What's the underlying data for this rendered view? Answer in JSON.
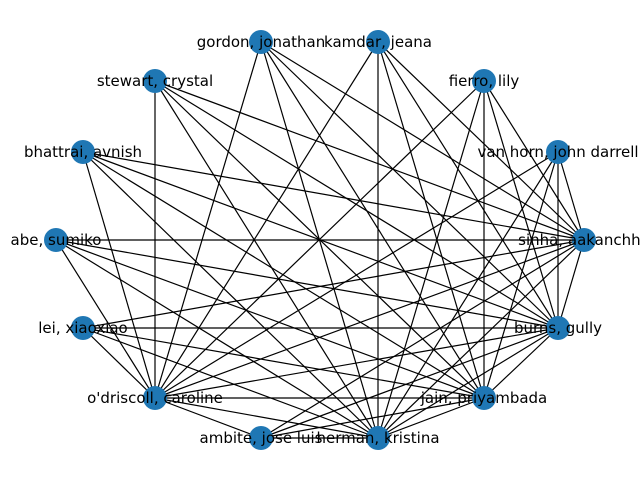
{
  "graph": {
    "node_color": "#1f77b4",
    "edge_color": "#000000",
    "nodes": [
      {
        "id": "kamdar",
        "label": "kamdar, jeana"
      },
      {
        "id": "gordon",
        "label": "gordon, jonathan"
      },
      {
        "id": "stewart",
        "label": "stewart, crystal"
      },
      {
        "id": "bhattrai",
        "label": "bhattrai, avnish"
      },
      {
        "id": "abe",
        "label": "abe, sumiko"
      },
      {
        "id": "lei",
        "label": "lei, xiaoxiao"
      },
      {
        "id": "odriscoll",
        "label": "o'driscoll, caroline"
      },
      {
        "id": "ambite",
        "label": "ambite, jose luis"
      },
      {
        "id": "herman",
        "label": "herman, kristina"
      },
      {
        "id": "jain",
        "label": "jain, priyambada"
      },
      {
        "id": "burns",
        "label": "burns, gully"
      },
      {
        "id": "sinha",
        "label": "sinha, aakanchha"
      },
      {
        "id": "vanhorn",
        "label": "van horn, john darrell"
      },
      {
        "id": "fierro",
        "label": "fierro, lily"
      }
    ],
    "edges": [
      [
        "kamdar",
        "herman"
      ],
      [
        "kamdar",
        "odriscoll"
      ],
      [
        "kamdar",
        "sinha"
      ],
      [
        "kamdar",
        "burns"
      ],
      [
        "kamdar",
        "jain"
      ],
      [
        "gordon",
        "herman"
      ],
      [
        "gordon",
        "odriscoll"
      ],
      [
        "gordon",
        "sinha"
      ],
      [
        "gordon",
        "burns"
      ],
      [
        "gordon",
        "jain"
      ],
      [
        "stewart",
        "herman"
      ],
      [
        "stewart",
        "odriscoll"
      ],
      [
        "stewart",
        "sinha"
      ],
      [
        "stewart",
        "burns"
      ],
      [
        "stewart",
        "jain"
      ],
      [
        "bhattrai",
        "herman"
      ],
      [
        "bhattrai",
        "odriscoll"
      ],
      [
        "bhattrai",
        "sinha"
      ],
      [
        "bhattrai",
        "burns"
      ],
      [
        "bhattrai",
        "jain"
      ],
      [
        "abe",
        "herman"
      ],
      [
        "abe",
        "odriscoll"
      ],
      [
        "abe",
        "sinha"
      ],
      [
        "abe",
        "burns"
      ],
      [
        "abe",
        "jain"
      ],
      [
        "lei",
        "herman"
      ],
      [
        "lei",
        "odriscoll"
      ],
      [
        "lei",
        "sinha"
      ],
      [
        "lei",
        "burns"
      ],
      [
        "lei",
        "jain"
      ],
      [
        "fierro",
        "herman"
      ],
      [
        "fierro",
        "odriscoll"
      ],
      [
        "fierro",
        "sinha"
      ],
      [
        "fierro",
        "burns"
      ],
      [
        "fierro",
        "jain"
      ],
      [
        "vanhorn",
        "herman"
      ],
      [
        "vanhorn",
        "odriscoll"
      ],
      [
        "vanhorn",
        "sinha"
      ],
      [
        "vanhorn",
        "burns"
      ],
      [
        "vanhorn",
        "jain"
      ],
      [
        "ambite",
        "herman"
      ],
      [
        "ambite",
        "odriscoll"
      ],
      [
        "ambite",
        "sinha"
      ],
      [
        "ambite",
        "burns"
      ],
      [
        "ambite",
        "jain"
      ],
      [
        "herman",
        "odriscoll"
      ],
      [
        "herman",
        "sinha"
      ],
      [
        "herman",
        "burns"
      ],
      [
        "herman",
        "jain"
      ],
      [
        "odriscoll",
        "sinha"
      ],
      [
        "odriscoll",
        "burns"
      ],
      [
        "odriscoll",
        "jain"
      ],
      [
        "sinha",
        "burns"
      ],
      [
        "burns",
        "jain"
      ]
    ]
  }
}
